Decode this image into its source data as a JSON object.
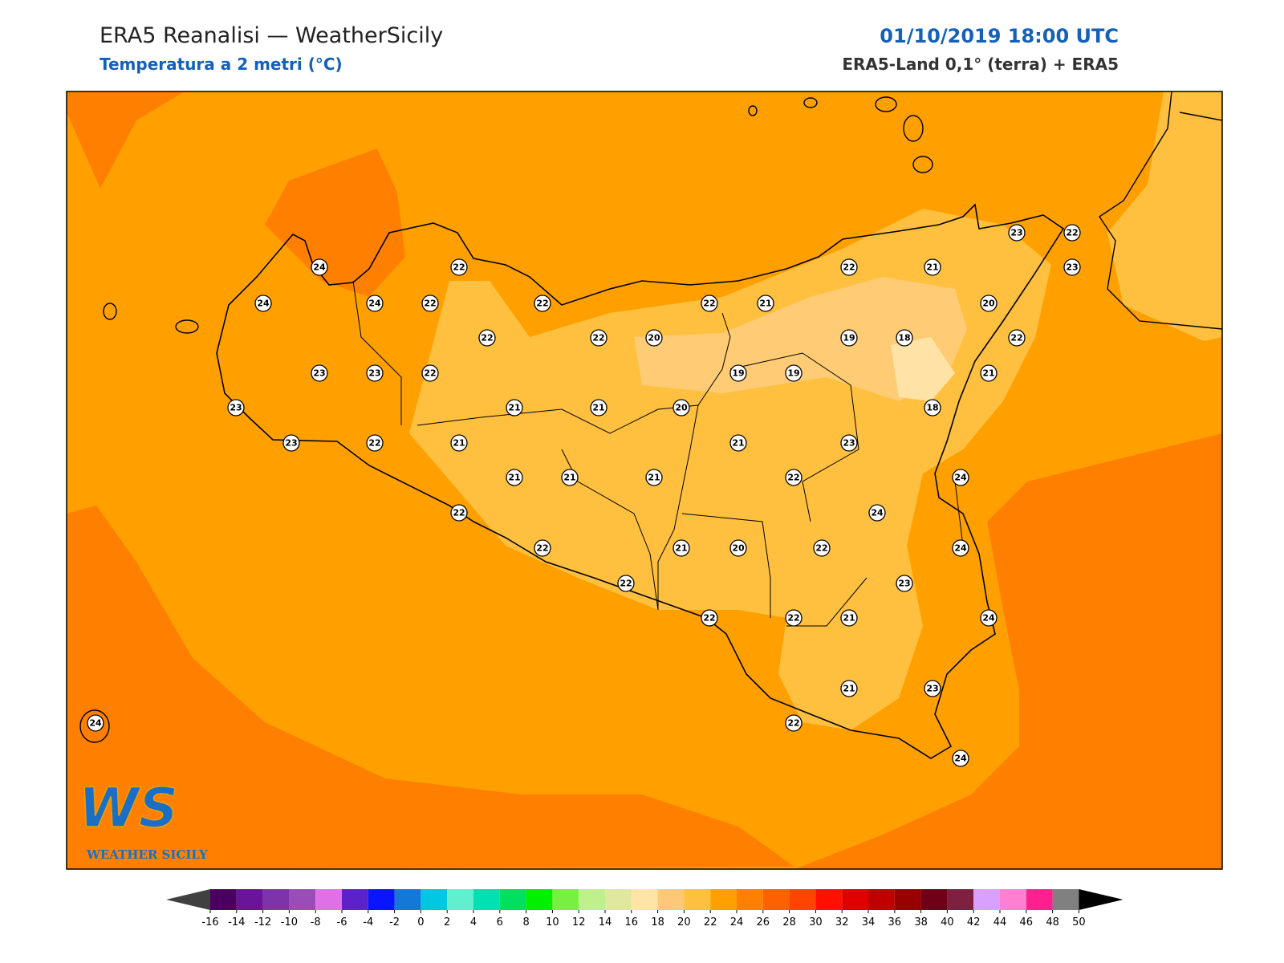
{
  "header": {
    "title": "ERA5 Reanalisi — WeatherSicily",
    "subtitle": "Temperatura a 2 metri (°C)",
    "datetime": "01/10/2019 18:00 UTC",
    "source": "ERA5-Land 0,1° (terra) + ERA5"
  },
  "logo": {
    "mark": "WS",
    "name": "WEATHER SICILY"
  },
  "stations": [
    24,
    24,
    24,
    22,
    22,
    22,
    22,
    22,
    20,
    22,
    21,
    22,
    21,
    23,
    22,
    23,
    20,
    22,
    19,
    18,
    21,
    18,
    19,
    19,
    23,
    23,
    22,
    23,
    23,
    22,
    21,
    21,
    21,
    20,
    21,
    23,
    21,
    21,
    21,
    22,
    24,
    22,
    24,
    22,
    21,
    20,
    22,
    24,
    22,
    23,
    22,
    22,
    21,
    24,
    21,
    23,
    22,
    24,
    24
  ],
  "colorbar": {
    "ticks": [
      -16,
      -14,
      -12,
      -10,
      -8,
      -6,
      -4,
      -2,
      0,
      2,
      4,
      6,
      8,
      10,
      12,
      14,
      16,
      18,
      20,
      22,
      24,
      26,
      28,
      30,
      32,
      34,
      36,
      38,
      40,
      42,
      44,
      46,
      48,
      50
    ],
    "colors": [
      "#4a0060",
      "#6a1499",
      "#7d34a8",
      "#9a4cb8",
      "#e070e8",
      "#5a22c8",
      "#0a14ff",
      "#1478d8",
      "#00c8e0",
      "#60f0d0",
      "#00e0b0",
      "#00e060",
      "#00f000",
      "#78f040",
      "#c0f08c",
      "#e0e8a0",
      "#ffe4a8",
      "#ffc878",
      "#ffc040",
      "#ffa000",
      "#ff8000",
      "#ff6000",
      "#ff4400",
      "#ff1000",
      "#e00000",
      "#c00000",
      "#980000",
      "#700018",
      "#802040",
      "#d8a0ff",
      "#ff80d0",
      "#ff2090",
      "#808080"
    ],
    "under": "#404040",
    "over": "#000000"
  }
}
